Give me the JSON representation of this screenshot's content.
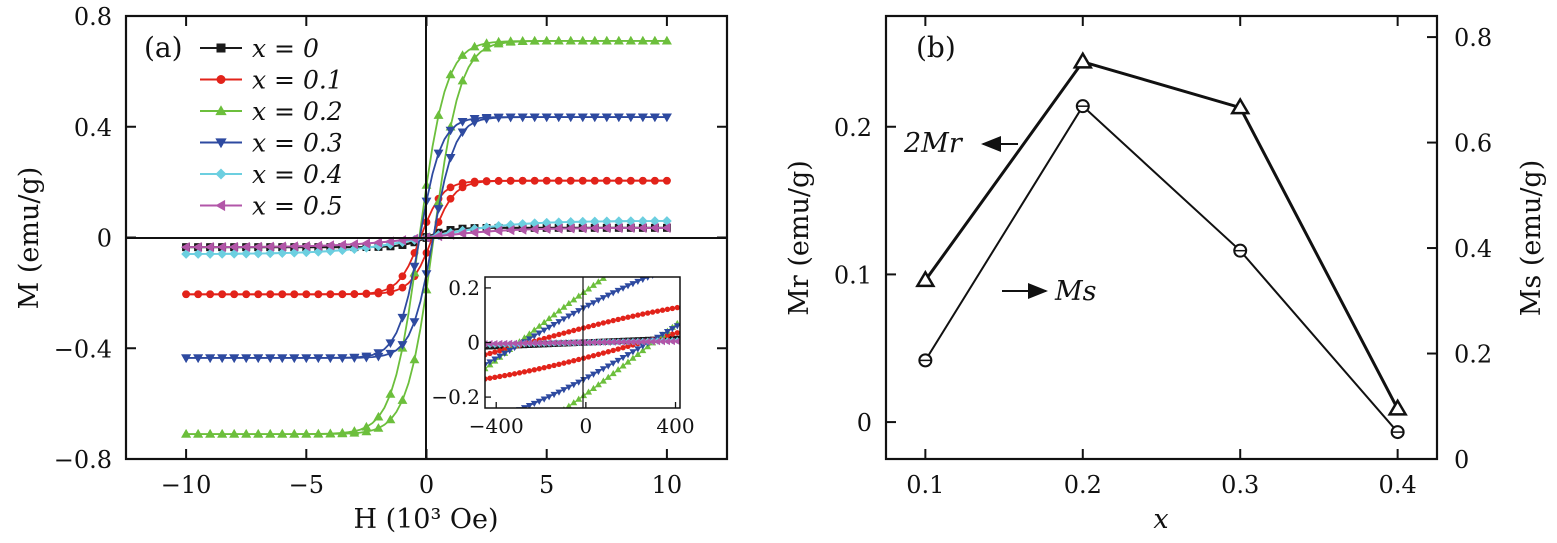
{
  "chart_data": [
    {
      "panel": "(a)",
      "type": "line",
      "xlabel": "H (10³ Oe)",
      "ylabel": "M (emu/g)",
      "xlim": [
        -12.5,
        12.5
      ],
      "ylim": [
        -0.8,
        0.8
      ],
      "xticks": [
        -10,
        -5,
        0,
        5,
        10
      ],
      "xtick_labels": [
        "−10",
        "−5",
        "0",
        "5",
        "10"
      ],
      "yticks": [
        -0.8,
        -0.4,
        0,
        0.4,
        0.8
      ],
      "ytick_labels": [
        "−0.8",
        "−0.4",
        "0",
        "0.4",
        "0.8"
      ],
      "legend_position": "top-left",
      "series": [
        {
          "name": "x = 0",
          "color": "#1a1a1a",
          "marker": "square",
          "ms": 0.035,
          "mr": 0.001,
          "hc": 0.05,
          "h0": 1.0
        },
        {
          "name": "x = 0.1",
          "color": "#e2231a",
          "marker": "circle",
          "ms": 0.205,
          "mr": 0.03,
          "hc": 0.25,
          "h0": 0.9
        },
        {
          "name": "x = 0.2",
          "color": "#6cbf3c",
          "marker": "triangle-up",
          "ms": 0.71,
          "mr": 0.12,
          "hc": 0.3,
          "h0": 1.1
        },
        {
          "name": "x = 0.3",
          "color": "#2e4aa0",
          "marker": "triangle-down",
          "ms": 0.435,
          "mr": 0.105,
          "hc": 0.28,
          "h0": 0.9
        },
        {
          "name": "x = 0.4",
          "color": "#6ccfe0",
          "marker": "diamond",
          "ms": 0.06,
          "mr": 0.002,
          "hc": 0.05,
          "h0": 3.5
        },
        {
          "name": "x = 0.5",
          "color": "#b256a8",
          "marker": "triangle-left",
          "ms": 0.035,
          "mr": 0.001,
          "hc": 0.05,
          "h0": 3.5
        }
      ],
      "inset": {
        "xlim": [
          -450,
          420
        ],
        "ylim": [
          -0.24,
          0.24
        ],
        "xticks": [
          -400,
          0,
          400
        ],
        "xtick_labels": [
          "−400",
          "0",
          "400"
        ],
        "yticks": [
          -0.2,
          0,
          0.2
        ],
        "ytick_labels": [
          "−0.2",
          "0",
          "0.2"
        ]
      }
    },
    {
      "panel": "(b)",
      "type": "line",
      "xlabel": "x",
      "ylabel_left": "Mr (emu/g)",
      "ylabel_right": "Ms (emu/g)",
      "x": [
        0.1,
        0.2,
        0.3,
        0.4
      ],
      "xlim": [
        0.075,
        0.425
      ],
      "xticks": [
        0.1,
        0.2,
        0.3,
        0.4
      ],
      "xtick_labels": [
        "0.1",
        "0.2",
        "0.3",
        "0.4"
      ],
      "ylim_left": [
        -0.025,
        0.275
      ],
      "yticks_left": [
        0,
        0.1,
        0.2
      ],
      "ytick_labels_left": [
        "0",
        "0.1",
        "0.2"
      ],
      "ylim_right": [
        0,
        0.84
      ],
      "yticks_right": [
        0,
        0.2,
        0.4,
        0.6,
        0.8
      ],
      "ytick_labels_right": [
        "0",
        "0.2",
        "0.4",
        "0.6",
        "0.8"
      ],
      "series": [
        {
          "name": "2Mr",
          "axis": "left",
          "marker": "triangle",
          "values": [
            0.096,
            0.244,
            0.213,
            0.009
          ]
        },
        {
          "name": "Ms",
          "axis": "right",
          "marker": "circle",
          "values": [
            0.187,
            0.669,
            0.395,
            0.051
          ]
        }
      ],
      "annotations": [
        {
          "text": "2Mr",
          "arrow": "left",
          "position": "left-upper"
        },
        {
          "text": "Ms",
          "arrow": "right",
          "position": "left-middle"
        }
      ]
    }
  ]
}
